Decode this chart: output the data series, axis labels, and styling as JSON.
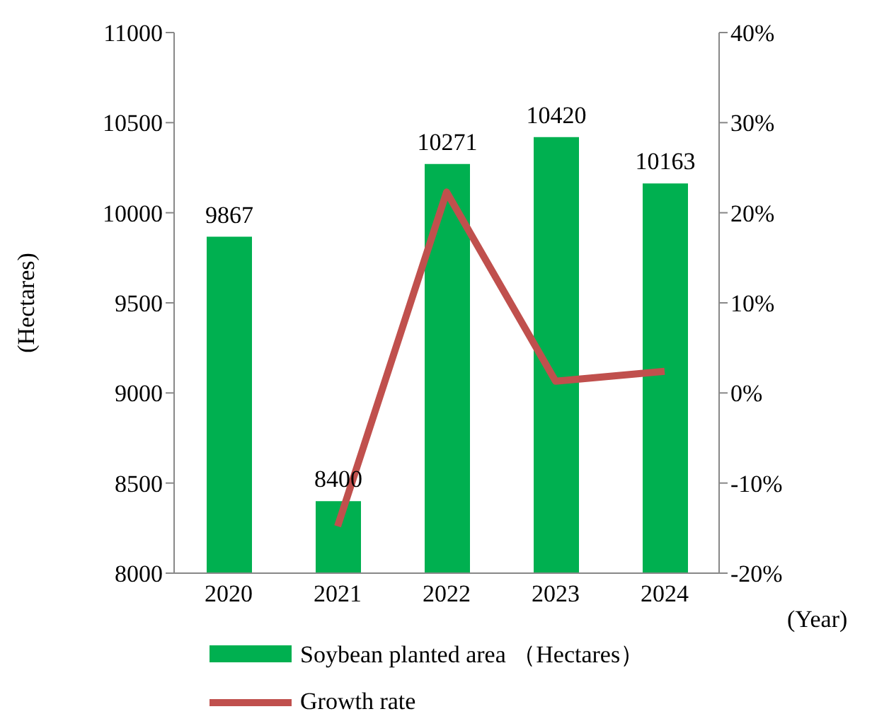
{
  "chart_data": {
    "type": "bar",
    "xlabel": "(Year)",
    "ylabel": "(Hectares)",
    "categories": [
      "2020",
      "2021",
      "2022",
      "2023",
      "2024"
    ],
    "series": [
      {
        "name": "Soybean planted area （Hectares）",
        "color": "#00b050",
        "values": [
          9867,
          8400,
          10271,
          10420,
          10163
        ],
        "value_labels": [
          "9867",
          "8400",
          "10271",
          "10420",
          "10163"
        ]
      },
      {
        "name": "Growth rate",
        "type": "line",
        "axis": "y2",
        "color": "#c0504d",
        "values": [
          null,
          -14.8,
          22.3,
          1.3,
          2.4
        ]
      }
    ],
    "ylim": [
      8000,
      11000
    ],
    "yticks": [
      8000,
      8500,
      9000,
      9500,
      10000,
      10500,
      11000
    ],
    "y2lim": [
      -20,
      40
    ],
    "y2ticks": [
      {
        "value": -20,
        "label": "-20%"
      },
      {
        "value": -10,
        "label": "-10%"
      },
      {
        "value": 0,
        "label": "0%"
      },
      {
        "value": 10,
        "label": "10%"
      },
      {
        "value": 20,
        "label": "20%"
      },
      {
        "value": 30,
        "label": "30%"
      },
      {
        "value": 40,
        "label": "40%"
      }
    ],
    "legend": "bottom",
    "marker": "none",
    "grid": false
  }
}
